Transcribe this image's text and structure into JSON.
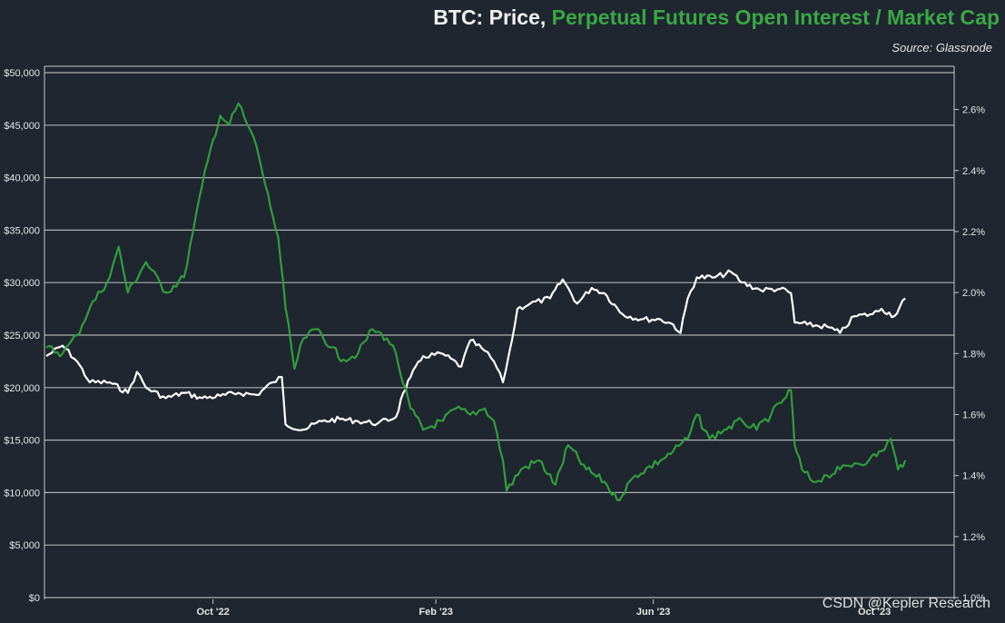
{
  "title": {
    "price_part": "BTC: Price,",
    "oi_part": "Perpetual Futures Open Interest / Market Cap"
  },
  "source": "Source: Glassnode",
  "watermark": "CSDN @Kepler Research",
  "colors": {
    "background": "#1f2630",
    "price_line": "#ffffff",
    "oi_line": "#2f9e3c",
    "grid": "#c8c8c8",
    "axis_text": "#e6e6e6"
  },
  "chart_data": {
    "type": "line",
    "grid": true,
    "x_ticks": [
      "Oct '22",
      "Feb '23",
      "Jun '23",
      "Oct '23"
    ],
    "x_tick_dates": [
      "2022-10-01",
      "2023-02-01",
      "2023-06-01",
      "2023-10-01"
    ],
    "y_left": {
      "range": [
        0,
        50000
      ],
      "ticks": [
        0,
        5000,
        10000,
        15000,
        20000,
        25000,
        30000,
        35000,
        40000,
        45000,
        50000
      ],
      "tick_labels": [
        "$0",
        "$5,000",
        "$10,000",
        "$15,000",
        "$20,000",
        "$25,000",
        "$30,000",
        "$35,000",
        "$40,000",
        "$45,000",
        "$50,000"
      ]
    },
    "y_right": {
      "range": [
        1.0,
        2.7
      ],
      "ticks": [
        1.0,
        1.2,
        1.4,
        1.6,
        1.8,
        2.0,
        2.2,
        2.4,
        2.6
      ],
      "tick_labels": [
        "1.0%",
        "1.2%",
        "1.4%",
        "1.6%",
        "1.8%",
        "2.0%",
        "2.2%",
        "2.4%",
        "2.6%"
      ]
    },
    "series": [
      {
        "name": "Price",
        "axis": "left",
        "points": [
          [
            "2022-07-01",
            23000
          ],
          [
            "2022-07-10",
            24000
          ],
          [
            "2022-07-18",
            22500
          ],
          [
            "2022-07-25",
            20500
          ],
          [
            "2022-08-05",
            20500
          ],
          [
            "2022-08-15",
            19500
          ],
          [
            "2022-08-20",
            21500
          ],
          [
            "2022-08-25",
            20000
          ],
          [
            "2022-09-05",
            19000
          ],
          [
            "2022-09-15",
            19500
          ],
          [
            "2022-09-25",
            19000
          ],
          [
            "2022-10-05",
            19200
          ],
          [
            "2022-10-15",
            19500
          ],
          [
            "2022-10-25",
            19300
          ],
          [
            "2022-11-03",
            20500
          ],
          [
            "2022-11-08",
            21000
          ],
          [
            "2022-11-10",
            16500
          ],
          [
            "2022-11-20",
            16000
          ],
          [
            "2022-11-30",
            16800
          ],
          [
            "2022-12-10",
            17000
          ],
          [
            "2022-12-20",
            16800
          ],
          [
            "2022-12-31",
            16600
          ],
          [
            "2023-01-10",
            17200
          ],
          [
            "2023-01-14",
            19500
          ],
          [
            "2023-01-18",
            21000
          ],
          [
            "2023-01-25",
            23000
          ],
          [
            "2023-02-05",
            23200
          ],
          [
            "2023-02-15",
            22000
          ],
          [
            "2023-02-20",
            24500
          ],
          [
            "2023-02-28",
            23500
          ],
          [
            "2023-03-05",
            22500
          ],
          [
            "2023-03-10",
            20500
          ],
          [
            "2023-03-15",
            24500
          ],
          [
            "2023-03-18",
            27500
          ],
          [
            "2023-03-25",
            28000
          ],
          [
            "2023-04-05",
            28500
          ],
          [
            "2023-04-12",
            30300
          ],
          [
            "2023-04-20",
            28000
          ],
          [
            "2023-04-28",
            29500
          ],
          [
            "2023-05-05",
            29000
          ],
          [
            "2023-05-15",
            27000
          ],
          [
            "2023-05-25",
            26500
          ],
          [
            "2023-06-05",
            26500
          ],
          [
            "2023-06-12",
            26000
          ],
          [
            "2023-06-16",
            25200
          ],
          [
            "2023-06-20",
            28500
          ],
          [
            "2023-06-25",
            30500
          ],
          [
            "2023-07-05",
            30500
          ],
          [
            "2023-07-14",
            31000
          ],
          [
            "2023-07-20",
            30000
          ],
          [
            "2023-07-30",
            29300
          ],
          [
            "2023-08-10",
            29400
          ],
          [
            "2023-08-16",
            29000
          ],
          [
            "2023-08-18",
            26200
          ],
          [
            "2023-08-25",
            26000
          ],
          [
            "2023-09-05",
            25800
          ],
          [
            "2023-09-12",
            25200
          ],
          [
            "2023-09-20",
            26800
          ],
          [
            "2023-09-30",
            27000
          ],
          [
            "2023-10-05",
            27500
          ],
          [
            "2023-10-12",
            26800
          ],
          [
            "2023-10-18",
            28500
          ]
        ]
      },
      {
        "name": "Perpetual Futures Open Interest / Market Cap",
        "axis": "right",
        "points": [
          [
            "2022-07-01",
            1.82
          ],
          [
            "2022-07-10",
            1.8
          ],
          [
            "2022-07-18",
            1.86
          ],
          [
            "2022-07-25",
            1.95
          ],
          [
            "2022-08-05",
            2.05
          ],
          [
            "2022-08-10",
            2.15
          ],
          [
            "2022-08-15",
            2.0
          ],
          [
            "2022-08-25",
            2.1
          ],
          [
            "2022-09-05",
            2.0
          ],
          [
            "2022-09-15",
            2.05
          ],
          [
            "2022-09-20",
            2.2
          ],
          [
            "2022-09-25",
            2.35
          ],
          [
            "2022-10-01",
            2.5
          ],
          [
            "2022-10-05",
            2.58
          ],
          [
            "2022-10-10",
            2.55
          ],
          [
            "2022-10-15",
            2.62
          ],
          [
            "2022-10-20",
            2.55
          ],
          [
            "2022-10-25",
            2.48
          ],
          [
            "2022-10-30",
            2.35
          ],
          [
            "2022-11-03",
            2.25
          ],
          [
            "2022-11-06",
            2.18
          ],
          [
            "2022-11-10",
            1.95
          ],
          [
            "2022-11-15",
            1.75
          ],
          [
            "2022-11-20",
            1.85
          ],
          [
            "2022-11-28",
            1.88
          ],
          [
            "2022-12-05",
            1.82
          ],
          [
            "2022-12-12",
            1.78
          ],
          [
            "2022-12-20",
            1.8
          ],
          [
            "2022-12-28",
            1.88
          ],
          [
            "2023-01-05",
            1.85
          ],
          [
            "2023-01-10",
            1.8
          ],
          [
            "2023-01-14",
            1.7
          ],
          [
            "2023-01-18",
            1.62
          ],
          [
            "2023-01-25",
            1.55
          ],
          [
            "2023-02-05",
            1.58
          ],
          [
            "2023-02-12",
            1.62
          ],
          [
            "2023-02-20",
            1.6
          ],
          [
            "2023-02-28",
            1.62
          ],
          [
            "2023-03-05",
            1.58
          ],
          [
            "2023-03-10",
            1.45
          ],
          [
            "2023-03-12",
            1.35
          ],
          [
            "2023-03-20",
            1.42
          ],
          [
            "2023-03-30",
            1.45
          ],
          [
            "2023-04-08",
            1.37
          ],
          [
            "2023-04-15",
            1.5
          ],
          [
            "2023-04-25",
            1.42
          ],
          [
            "2023-05-05",
            1.38
          ],
          [
            "2023-05-12",
            1.32
          ],
          [
            "2023-05-22",
            1.4
          ],
          [
            "2023-06-05",
            1.45
          ],
          [
            "2023-06-12",
            1.48
          ],
          [
            "2023-06-20",
            1.52
          ],
          [
            "2023-06-25",
            1.6
          ],
          [
            "2023-07-02",
            1.52
          ],
          [
            "2023-07-10",
            1.55
          ],
          [
            "2023-07-20",
            1.58
          ],
          [
            "2023-07-28",
            1.55
          ],
          [
            "2023-08-05",
            1.6
          ],
          [
            "2023-08-12",
            1.65
          ],
          [
            "2023-08-16",
            1.68
          ],
          [
            "2023-08-18",
            1.5
          ],
          [
            "2023-08-22",
            1.42
          ],
          [
            "2023-08-28",
            1.38
          ],
          [
            "2023-09-05",
            1.4
          ],
          [
            "2023-09-12",
            1.42
          ],
          [
            "2023-09-20",
            1.44
          ],
          [
            "2023-09-28",
            1.45
          ],
          [
            "2023-10-05",
            1.48
          ],
          [
            "2023-10-10",
            1.52
          ],
          [
            "2023-10-14",
            1.42
          ],
          [
            "2023-10-18",
            1.45
          ]
        ]
      }
    ]
  }
}
